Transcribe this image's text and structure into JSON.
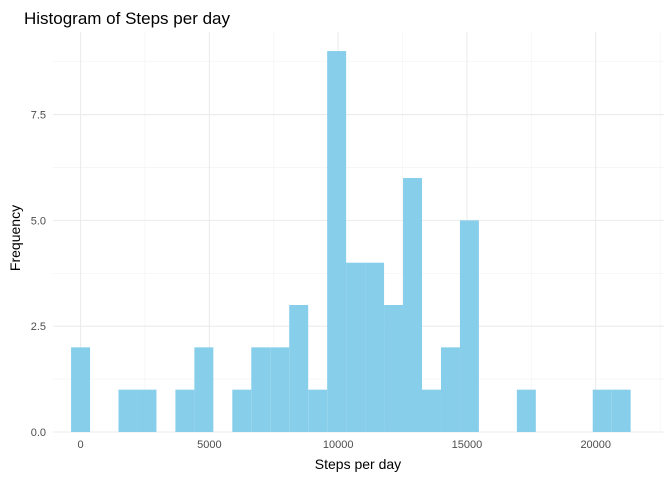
{
  "chart_data": {
    "type": "bar",
    "title": "Histogram of Steps per day",
    "xlabel": "Steps per day",
    "ylabel": "Frequency",
    "bar_color": "#87ceeb",
    "binwidth": 736.4,
    "x_range": [
      -1070,
      22650
    ],
    "ylim": [
      0,
      9.45
    ],
    "x_ticks": [
      0,
      5000,
      10000,
      15000,
      20000
    ],
    "y_ticks": [
      0,
      2.5,
      5,
      7.5
    ],
    "y_tick_labels": [
      "0.0",
      "2.5",
      "5.0",
      "7.5"
    ],
    "x_tick_labels": [
      "0",
      "5000",
      "10000",
      "15000",
      "20000"
    ],
    "bins": [
      {
        "x": 0,
        "count": 2
      },
      {
        "x": 1841,
        "count": 1
      },
      {
        "x": 2577.4,
        "count": 1
      },
      {
        "x": 4050.2,
        "count": 1
      },
      {
        "x": 4786.6,
        "count": 2
      },
      {
        "x": 6259.4,
        "count": 1
      },
      {
        "x": 6995.8,
        "count": 2
      },
      {
        "x": 7732.2,
        "count": 2
      },
      {
        "x": 8468.6,
        "count": 3
      },
      {
        "x": 9205,
        "count": 1
      },
      {
        "x": 9941.4,
        "count": 9
      },
      {
        "x": 10677.8,
        "count": 4
      },
      {
        "x": 11414.2,
        "count": 4
      },
      {
        "x": 12150.6,
        "count": 3
      },
      {
        "x": 12887,
        "count": 6
      },
      {
        "x": 13623.4,
        "count": 1
      },
      {
        "x": 14359.8,
        "count": 2
      },
      {
        "x": 15096.2,
        "count": 5
      },
      {
        "x": 17305.4,
        "count": 1
      },
      {
        "x": 20251,
        "count": 1
      },
      {
        "x": 20987.4,
        "count": 1
      }
    ]
  }
}
